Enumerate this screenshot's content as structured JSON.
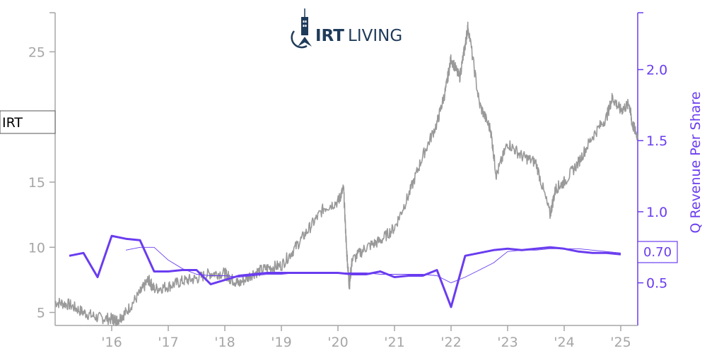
{
  "logo": {
    "brand_bold": "IRT",
    "brand_light": "LIVING"
  },
  "ticker": {
    "symbol": "IRT"
  },
  "last_value_badge": "0.70",
  "chart_data": {
    "type": "line",
    "title": "",
    "xlabel": "",
    "x_tick_labels": [
      "'16",
      "'17",
      "'18",
      "'19",
      "'20",
      "'21",
      "'22",
      "'23",
      "'24",
      "'25"
    ],
    "x_tick_years": [
      2016,
      2017,
      2018,
      2019,
      2020,
      2021,
      2022,
      2023,
      2024,
      2025
    ],
    "xlim": [
      2015.0,
      2025.3
    ],
    "left_axis": {
      "label": "",
      "ylim": [
        4,
        28
      ],
      "tick_values": [
        5,
        10,
        15,
        20,
        25
      ],
      "tick_labels": [
        "5",
        "10",
        "15",
        "",
        "25"
      ]
    },
    "right_axis": {
      "label": "Q Revenue Per Share",
      "ylim": [
        0.2,
        2.4
      ],
      "tick_values": [
        0.5,
        1.0,
        1.5,
        2.0
      ],
      "tick_labels": [
        "0.5",
        "1.0",
        "1.5",
        "2.0"
      ]
    },
    "colors": {
      "price": "#999999",
      "revenue": "#6a3cf0",
      "axis_left": "#a6a6a6",
      "axis_right": "#6a3cf0",
      "logo": "#1f3b5a"
    },
    "series": [
      {
        "name": "IRT",
        "axis": "left",
        "x": [
          2015.0,
          2015.25,
          2015.5,
          2015.75,
          2016.0,
          2016.1,
          2016.25,
          2016.5,
          2016.65,
          2016.75,
          2017.0,
          2017.25,
          2017.5,
          2017.75,
          2018.0,
          2018.1,
          2018.25,
          2018.5,
          2018.75,
          2019.0,
          2019.25,
          2019.5,
          2019.75,
          2020.0,
          2020.1,
          2020.15,
          2020.2,
          2020.25,
          2020.5,
          2020.75,
          2021.0,
          2021.25,
          2021.5,
          2021.75,
          2021.9,
          2022.0,
          2022.15,
          2022.25,
          2022.3,
          2022.5,
          2022.7,
          2022.8,
          2023.0,
          2023.25,
          2023.5,
          2023.75,
          2023.85,
          2024.0,
          2024.25,
          2024.5,
          2024.75,
          2024.85,
          2025.0,
          2025.15,
          2025.2,
          2025.3
        ],
        "values": [
          5.8,
          5.6,
          5.0,
          4.6,
          4.5,
          4.4,
          5.0,
          6.5,
          7.5,
          6.8,
          7.0,
          7.4,
          7.6,
          8.0,
          8.0,
          7.6,
          7.2,
          8.0,
          8.4,
          8.6,
          10.0,
          11.5,
          13.0,
          13.5,
          14.5,
          10.0,
          7.0,
          9.0,
          10.0,
          10.5,
          11.5,
          14.0,
          17.0,
          19.5,
          22.0,
          24.5,
          23.0,
          25.5,
          27.0,
          21.0,
          19.0,
          15.5,
          18.0,
          17.0,
          16.5,
          12.5,
          14.5,
          15.0,
          16.5,
          18.5,
          20.0,
          21.5,
          20.5,
          21.0,
          19.5,
          18.5
        ]
      },
      {
        "name": "Q Revenue Per Share",
        "axis": "right",
        "x": [
          2015.25,
          2015.5,
          2015.75,
          2016.0,
          2016.25,
          2016.5,
          2016.75,
          2017.0,
          2017.25,
          2017.5,
          2017.75,
          2018.0,
          2018.25,
          2018.5,
          2018.75,
          2019.0,
          2019.25,
          2019.5,
          2019.75,
          2020.0,
          2020.25,
          2020.5,
          2020.75,
          2021.0,
          2021.25,
          2021.5,
          2021.75,
          2022.0,
          2022.25,
          2022.5,
          2022.75,
          2023.0,
          2023.25,
          2023.5,
          2023.75,
          2024.0,
          2024.25,
          2024.5,
          2024.75,
          2025.0
        ],
        "values": [
          0.69,
          0.71,
          0.54,
          0.83,
          0.81,
          0.8,
          0.58,
          0.58,
          0.59,
          0.59,
          0.49,
          0.52,
          0.55,
          0.56,
          0.57,
          0.57,
          0.57,
          0.57,
          0.57,
          0.57,
          0.56,
          0.56,
          0.58,
          0.54,
          0.55,
          0.55,
          0.59,
          0.33,
          0.69,
          0.71,
          0.73,
          0.74,
          0.73,
          0.74,
          0.75,
          0.74,
          0.72,
          0.71,
          0.71,
          0.7
        ]
      },
      {
        "name": "Q Revenue Per Share trailing average",
        "axis": "right",
        "x": [
          2016.25,
          2016.5,
          2016.75,
          2017.0,
          2017.25,
          2017.5,
          2017.75,
          2018.0,
          2018.25,
          2018.5,
          2018.75,
          2019.0,
          2019.25,
          2019.5,
          2019.75,
          2020.0,
          2020.25,
          2020.5,
          2020.75,
          2021.0,
          2021.25,
          2021.5,
          2021.75,
          2022.0,
          2022.25,
          2022.5,
          2022.75,
          2023.0,
          2023.25,
          2023.5,
          2023.75,
          2024.0,
          2024.25,
          2024.5,
          2024.75,
          2025.0
        ],
        "values": [
          0.73,
          0.75,
          0.75,
          0.66,
          0.6,
          0.56,
          0.55,
          0.55,
          0.54,
          0.55,
          0.56,
          0.56,
          0.57,
          0.57,
          0.57,
          0.57,
          0.57,
          0.57,
          0.56,
          0.56,
          0.56,
          0.56,
          0.55,
          0.5,
          0.54,
          0.59,
          0.64,
          0.72,
          0.73,
          0.73,
          0.74,
          0.74,
          0.74,
          0.73,
          0.72,
          0.71
        ]
      }
    ]
  }
}
